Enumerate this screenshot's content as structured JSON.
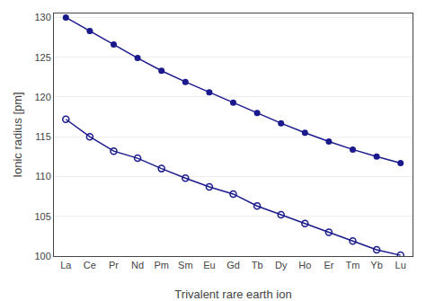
{
  "chart_data": {
    "type": "line",
    "xlabel": "Trivalent rare earth ion",
    "ylabel": "Ionic radius [pm]",
    "categories": [
      "La",
      "Ce",
      "Pr",
      "Nd",
      "Pm",
      "Sm",
      "Eu",
      "Gd",
      "Tb",
      "Dy",
      "Ho",
      "Er",
      "Tm",
      "Yb",
      "Lu"
    ],
    "series": [
      {
        "color": "#1a1a8c",
        "marker": "filled",
        "values": [
          130.0,
          128.3,
          126.6,
          124.9,
          123.3,
          121.9,
          120.6,
          119.3,
          118.0,
          116.7,
          115.5,
          114.4,
          113.4,
          112.5,
          111.7
        ]
      },
      {
        "color": "#1a1a8c",
        "marker": "open",
        "values": [
          117.2,
          115.0,
          113.2,
          112.3,
          111.0,
          109.8,
          108.7,
          107.8,
          106.3,
          105.2,
          104.1,
          103.0,
          101.9,
          100.8,
          100.1
        ]
      }
    ],
    "ylim": [
      100,
      130.5
    ],
    "yticks": [
      100,
      105,
      110,
      115,
      120,
      125,
      130
    ],
    "grid": true
  }
}
